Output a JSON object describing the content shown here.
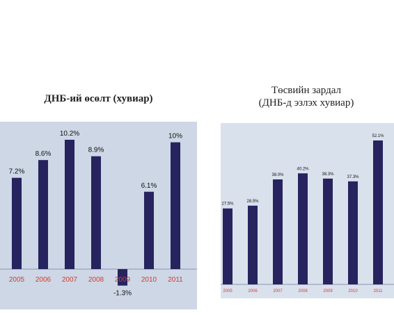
{
  "chart_data": [
    {
      "type": "bar",
      "title": "ДНБ-ий өсөлт (хувиар)",
      "categories": [
        "2005",
        "2006",
        "2007",
        "2008",
        "2009",
        "2010",
        "2011"
      ],
      "values": [
        7.2,
        8.6,
        10.2,
        8.9,
        -1.3,
        6.1,
        10.0
      ],
      "value_labels": [
        "7.2%",
        "8.6%",
        "10.2%",
        "8.9%",
        "-1.3%",
        "6.1%",
        "10%"
      ],
      "ylim": [
        -1.3,
        10.2
      ],
      "grid": false,
      "colors": {
        "background": "#cdd7e6",
        "bar": "#27235e",
        "tick_label": "#d23b32"
      }
    },
    {
      "type": "bar",
      "title": "Төсвийн зардал\n(ДНБ-д эзлэх хувиар)",
      "title_lines": [
        "Төсвийн зардал",
        "(ДНБ-д эзлэх хувиар)"
      ],
      "categories": [
        "2005",
        "2006",
        "2007",
        "2008",
        "2009",
        "2010",
        "2011"
      ],
      "values": [
        27.5,
        28.5,
        38.0,
        40.2,
        38.3,
        37.3,
        52.1
      ],
      "value_labels": [
        "27.5%",
        "28.5%",
        "38.0%",
        "40.2%",
        "38.3%",
        "37.3%",
        "52.1%"
      ],
      "ylim": [
        0,
        52.1
      ],
      "grid": false,
      "colors": {
        "background": "#d9e1ed",
        "bar": "#27235e",
        "tick_label": "#d23b32"
      }
    }
  ]
}
